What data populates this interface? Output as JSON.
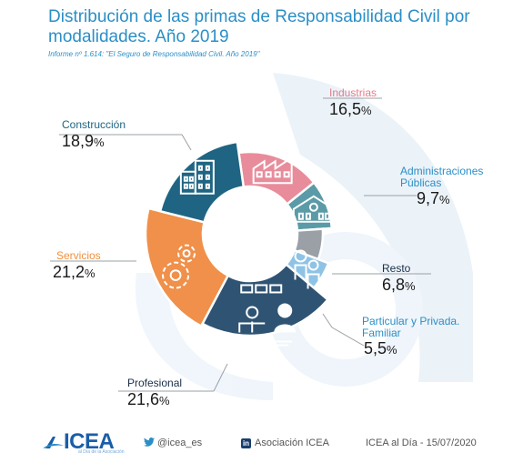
{
  "header": {
    "title": "Distribución de las primas de Responsabilidad Civil por modalidades. Año 2019",
    "subtitle": "Informe nº 1.614: \"El Seguro de Responsabilidad Civil. Año 2019\""
  },
  "chart_data": {
    "type": "pie",
    "title": "Distribución de las primas de Responsabilidad Civil por modalidades. Año 2019",
    "categories": [
      "Industrias",
      "Administraciones Públicas",
      "Resto",
      "Particular y Privada. Familiar",
      "Profesional",
      "Servicios",
      "Construcción"
    ],
    "values": [
      16.5,
      9.7,
      6.8,
      5.5,
      21.6,
      21.2,
      18.9
    ],
    "value_labels": [
      "16,5%",
      "9,7%",
      "6,8%",
      "5,5%",
      "21,6%",
      "21,2%",
      "18,9%"
    ],
    "colors": [
      "#e88c9b",
      "#5b9aa7",
      "#9aa0a6",
      "#8ec3e6",
      "#2f5373",
      "#f0904a",
      "#1f6583"
    ],
    "legend": "callout-labels",
    "icons": [
      "factory-icon",
      "school-building-icon",
      "",
      "family-icon",
      "meeting-icon",
      "gears-icon",
      "office-building-icon"
    ]
  },
  "labels": [
    {
      "name": "Industrias",
      "value": "16,5",
      "color": "#e8798b"
    },
    {
      "name": "Administraciones Públicas",
      "value": "9,7",
      "color": "#2a8fc7"
    },
    {
      "name": "Resto",
      "value": "6,8",
      "color": "#1a2f4a"
    },
    {
      "name": "Particular y Privada. Familiar",
      "value": "5,5",
      "color": "#2a8fc7"
    },
    {
      "name": "Profesional",
      "value": "21,6",
      "color": "#1a2f4a"
    },
    {
      "name": "Servicios",
      "value": "21,2",
      "color": "#f0903a"
    },
    {
      "name": "Construcción",
      "value": "18,9",
      "color": "#1f6583"
    }
  ],
  "footer": {
    "logo": "ICEA",
    "logo_sub": "al Día de la Asociación",
    "twitter": "@icea_es",
    "linkedin": "Asociación ICEA",
    "edition": "ICEA al Día - 15/07/2020"
  }
}
